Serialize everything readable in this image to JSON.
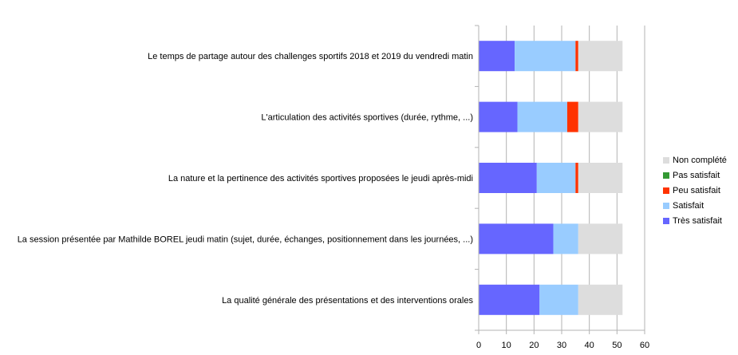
{
  "chart_data": {
    "type": "bar",
    "orientation": "horizontal",
    "stacked": true,
    "categories": [
      "Le temps de partage autour des challenges sportifs 2018 et 2019 du vendredi matin",
      "L'articulation des activités sportives (durée, rythme, ...)",
      "La nature et la pertinence des activités sportives proposées le jeudi après-midi",
      "La session présentée par Mathilde BOREL jeudi matin (sujet, durée, échanges, positionnement dans les journées, ...)",
      "La qualité générale des présentations et des interventions orales"
    ],
    "series": [
      {
        "name": "Très satisfait",
        "color": "#6666ff",
        "values": [
          13,
          14,
          21,
          27,
          22
        ]
      },
      {
        "name": "Satisfait",
        "color": "#99ccff",
        "values": [
          22,
          18,
          14,
          9,
          14
        ]
      },
      {
        "name": "Peu satisfait",
        "color": "#ff3300",
        "values": [
          1,
          4,
          1,
          0,
          0
        ]
      },
      {
        "name": "Pas satisfait",
        "color": "#339933",
        "values": [
          0,
          0,
          0,
          0,
          0
        ]
      },
      {
        "name": "Non complété",
        "color": "#dddddd",
        "values": [
          16,
          16,
          16,
          16,
          16
        ]
      }
    ],
    "legend_order": [
      "Non complété",
      "Pas satisfait",
      "Peu satisfait",
      "Satisfait",
      "Très satisfait"
    ],
    "xlim": [
      0,
      60
    ],
    "xticks": [
      0,
      10,
      20,
      30,
      40,
      50,
      60
    ],
    "grid": "vertical",
    "legend_position": "right",
    "title": "",
    "xlabel": "",
    "ylabel": ""
  }
}
